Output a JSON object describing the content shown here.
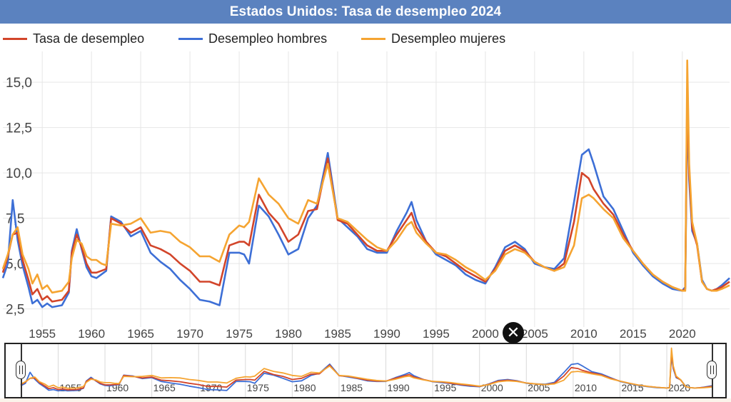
{
  "title": "Estados Unidos: Tasa de desempleo 2024",
  "colors": {
    "title_bg": "#5b82bf",
    "total": "#d2452a",
    "men": "#3d6fd6",
    "women": "#f5a431",
    "grid": "#e6e6e6",
    "close_button": "#111111"
  },
  "navigator": {
    "close_icon": "close-icon",
    "tick_labels": [
      "1955",
      "1960",
      "1965",
      "1970",
      "1975",
      "1980",
      "1985",
      "1990",
      "1995",
      "2000",
      "2005",
      "2010",
      "2015",
      "2020"
    ]
  },
  "chart_data": {
    "type": "line",
    "title": "Estados Unidos: Tasa de desempleo 2024",
    "xlabel": "",
    "ylabel": "",
    "xlim": [
      1951.0,
      2024.8
    ],
    "ylim": [
      1.5,
      16.7
    ],
    "x_ticks": [
      1955,
      1960,
      1965,
      1970,
      1975,
      1980,
      1985,
      1990,
      1995,
      2000,
      2005,
      2010,
      2015,
      2020
    ],
    "x_tick_labels": [
      "1955",
      "1960",
      "1965",
      "1970",
      "1975",
      "1980",
      "1985",
      "1990",
      "1995",
      "2000",
      "2005",
      "2010",
      "2015",
      "2020"
    ],
    "y_ticks": [
      2.5,
      5,
      7.5,
      10,
      12.5,
      15
    ],
    "y_tick_labels": [
      "2,5",
      "5,0",
      "7,5",
      "10,0",
      "12,5",
      "15,0"
    ],
    "grid": true,
    "legend_position": "top-left",
    "x": [
      1951.0,
      1951.5,
      1952.0,
      1952.5,
      1953.0,
      1953.6,
      1954.0,
      1954.5,
      1955.0,
      1955.5,
      1956.0,
      1957.0,
      1957.7,
      1958.0,
      1958.5,
      1959.0,
      1959.5,
      1960.0,
      1960.5,
      1961.0,
      1961.5,
      1962.0,
      1963.0,
      1964.0,
      1965.0,
      1966.0,
      1967.0,
      1968.0,
      1969.0,
      1970.0,
      1971.0,
      1972.0,
      1973.0,
      1974.0,
      1975.0,
      1975.5,
      1976.0,
      1977.0,
      1978.0,
      1979.0,
      1980.0,
      1981.0,
      1982.0,
      1982.9,
      1984.0,
      1985.0,
      1986.0,
      1987.0,
      1988.0,
      1989.0,
      1990.0,
      1991.0,
      1992.0,
      1992.5,
      1993.0,
      1994.0,
      1995.0,
      1996.0,
      1997.0,
      1998.0,
      1999.0,
      2000.0,
      2001.0,
      2002.0,
      2003.0,
      2004.0,
      2005.0,
      2006.0,
      2007.0,
      2008.0,
      2009.0,
      2009.8,
      2010.5,
      2011.0,
      2012.0,
      2013.0,
      2014.0,
      2015.0,
      2016.0,
      2017.0,
      2018.0,
      2019.0,
      2020.0,
      2020.3,
      2020.5,
      2020.7,
      2021.0,
      2021.5,
      2022.0,
      2022.5,
      2023.0,
      2023.5,
      2024.0,
      2024.8
    ],
    "series": [
      {
        "name": "Tasa de desempleo",
        "values": [
          4.5,
          5.4,
          6.6,
          6.7,
          5.2,
          4.1,
          3.3,
          3.6,
          3.0,
          3.2,
          2.9,
          3.0,
          3.5,
          5.6,
          6.6,
          5.9,
          5.0,
          4.5,
          4.5,
          4.6,
          4.7,
          7.5,
          7.2,
          6.7,
          7.0,
          6.0,
          5.8,
          5.5,
          5.0,
          4.6,
          4.0,
          4.0,
          3.8,
          6.0,
          6.2,
          6.2,
          6.0,
          8.8,
          7.8,
          7.2,
          6.2,
          6.6,
          7.9,
          8.0,
          10.8,
          7.4,
          7.2,
          6.6,
          6.0,
          5.7,
          5.7,
          6.6,
          7.4,
          7.8,
          7.0,
          6.2,
          5.6,
          5.4,
          5.0,
          4.6,
          4.3,
          4.0,
          4.7,
          5.7,
          6.0,
          5.7,
          5.1,
          4.8,
          4.6,
          5.0,
          7.3,
          10.0,
          9.7,
          9.1,
          8.3,
          7.7,
          6.6,
          5.7,
          5.0,
          4.4,
          4.0,
          3.7,
          3.5,
          3.6,
          14.7,
          10.0,
          7.0,
          6.0,
          4.0,
          3.6,
          3.5,
          3.6,
          3.7,
          4.0
        ]
      },
      {
        "name": "Desempleo hombres",
        "values": [
          4.2,
          5.0,
          8.5,
          6.3,
          4.9,
          3.7,
          2.8,
          3.0,
          2.6,
          2.8,
          2.6,
          2.7,
          3.4,
          5.7,
          6.9,
          5.8,
          4.8,
          4.3,
          4.2,
          4.4,
          4.6,
          7.6,
          7.3,
          6.5,
          6.8,
          5.6,
          5.1,
          4.7,
          4.1,
          3.6,
          3.0,
          2.9,
          2.7,
          5.6,
          5.6,
          5.5,
          5.0,
          8.2,
          7.6,
          6.6,
          5.5,
          5.8,
          7.5,
          8.2,
          11.1,
          7.5,
          7.0,
          6.5,
          5.8,
          5.6,
          5.6,
          6.8,
          7.8,
          8.4,
          7.4,
          6.2,
          5.5,
          5.2,
          4.9,
          4.4,
          4.1,
          3.9,
          4.8,
          5.9,
          6.2,
          5.8,
          5.0,
          4.8,
          4.7,
          5.3,
          8.4,
          11.0,
          11.3,
          10.5,
          8.7,
          8.0,
          6.8,
          5.6,
          4.9,
          4.3,
          3.9,
          3.6,
          3.5,
          3.7,
          13.5,
          9.6,
          6.8,
          6.1,
          4.1,
          3.6,
          3.5,
          3.6,
          3.8,
          4.2
        ]
      },
      {
        "name": "Desempleo mujeres",
        "values": [
          4.7,
          5.5,
          6.6,
          7.0,
          5.5,
          4.7,
          3.9,
          4.4,
          3.6,
          3.8,
          3.4,
          3.5,
          4.0,
          5.3,
          6.3,
          6.1,
          5.4,
          5.2,
          5.2,
          5.0,
          4.9,
          7.2,
          7.1,
          7.2,
          7.5,
          6.7,
          6.8,
          6.7,
          6.2,
          5.9,
          5.4,
          5.4,
          5.1,
          6.6,
          7.1,
          7.0,
          7.3,
          9.7,
          8.8,
          8.3,
          7.5,
          7.2,
          8.5,
          8.3,
          10.5,
          7.5,
          7.3,
          6.8,
          6.3,
          5.9,
          5.7,
          6.3,
          7.1,
          7.3,
          6.7,
          6.1,
          5.6,
          5.5,
          5.2,
          4.8,
          4.5,
          4.1,
          4.6,
          5.5,
          5.8,
          5.6,
          5.1,
          4.8,
          4.6,
          4.8,
          6.0,
          8.6,
          8.8,
          8.6,
          8.0,
          7.5,
          6.4,
          5.7,
          5.0,
          4.4,
          4.0,
          3.7,
          3.5,
          3.5,
          16.2,
          10.5,
          7.3,
          6.1,
          4.0,
          3.6,
          3.5,
          3.5,
          3.6,
          3.8
        ]
      }
    ]
  }
}
